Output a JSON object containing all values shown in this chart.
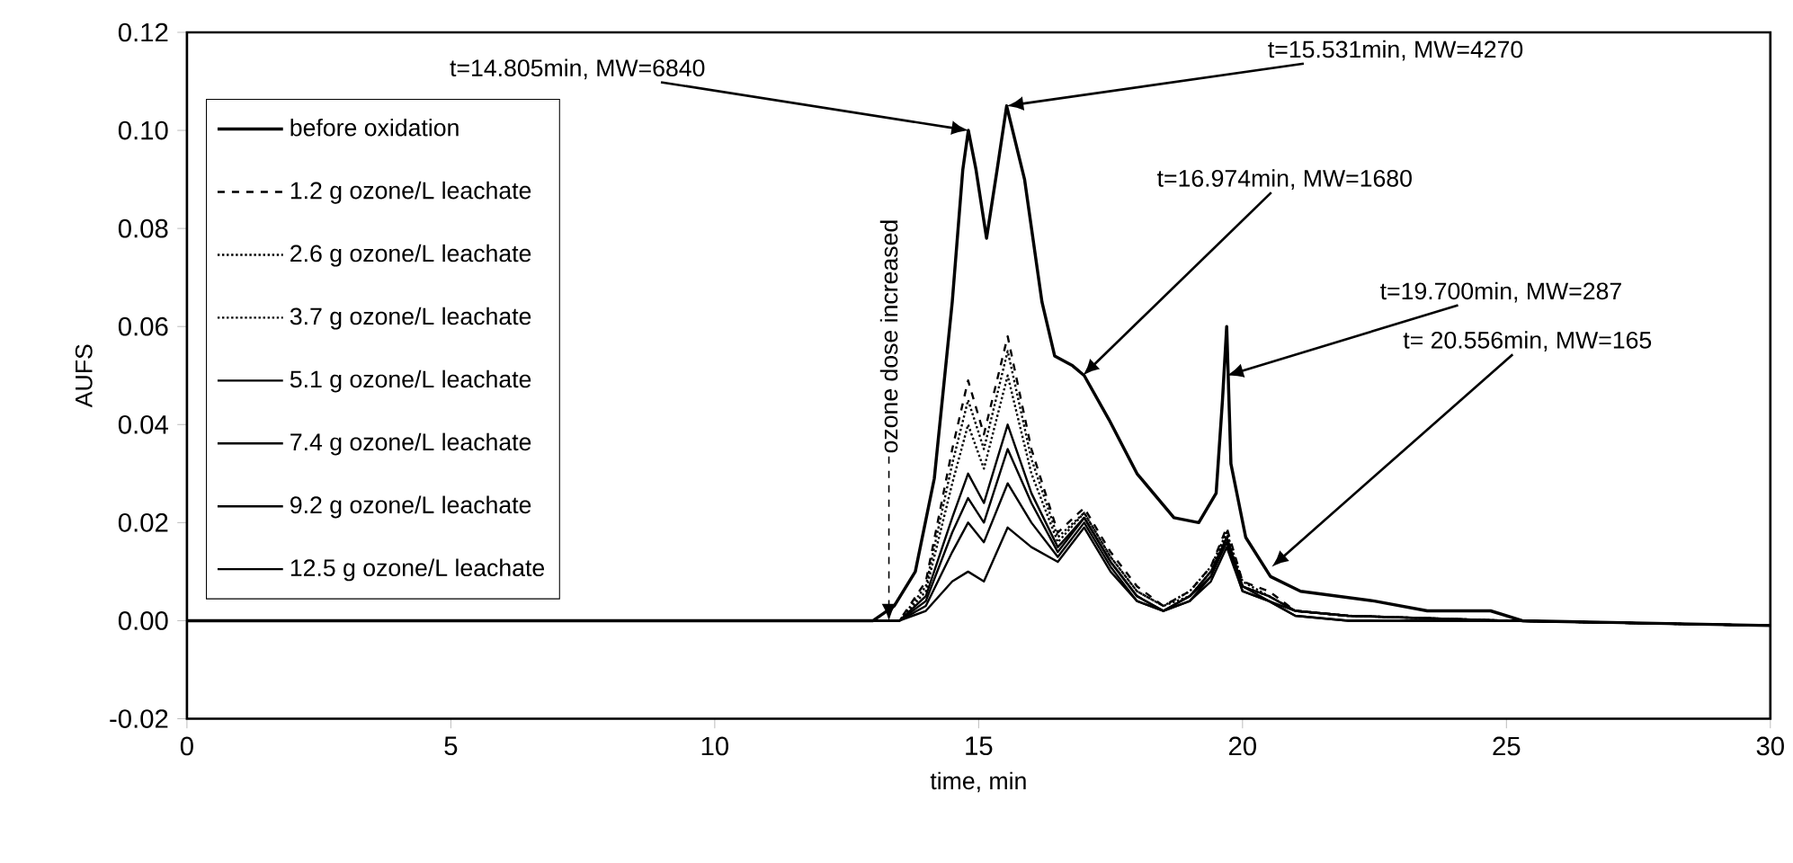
{
  "chart_data": {
    "type": "line",
    "xlabel": "time, min",
    "ylabel": "AUFS",
    "xlim": [
      0,
      30
    ],
    "ylim": [
      -0.02,
      0.12
    ],
    "xticks": [
      0,
      5,
      10,
      15,
      20,
      25,
      30
    ],
    "yticks": [
      {
        "value": -0.02,
        "label": "-0.02"
      },
      {
        "value": 0,
        "label": "0.00"
      },
      {
        "value": 0.02,
        "label": "0.02"
      },
      {
        "value": 0.04,
        "label": "0.04"
      },
      {
        "value": 0.06,
        "label": "0.06"
      },
      {
        "value": 0.08,
        "label": "0.08"
      },
      {
        "value": 0.1,
        "label": "0.10"
      },
      {
        "value": 0.12,
        "label": "0.12"
      }
    ],
    "legend": "top left",
    "series": [
      {
        "name": "before oxidation",
        "color": "#000000",
        "line_style": "solid",
        "x": [
          0,
          13.0,
          13.4,
          13.8,
          14.16,
          14.5,
          14.7,
          14.805,
          14.95,
          15.15,
          15.35,
          15.531,
          15.87,
          16.2,
          16.44,
          16.78,
          17.0,
          17.47,
          18.0,
          18.7,
          19.17,
          19.5,
          19.62,
          19.7,
          19.78,
          20.06,
          20.53,
          21.1,
          22.5,
          23.5,
          24.7,
          25.3,
          30
        ],
        "values": [
          0,
          0,
          0.003,
          0.01,
          0.029,
          0.065,
          0.092,
          0.1,
          0.092,
          0.078,
          0.092,
          0.105,
          0.09,
          0.065,
          0.054,
          0.052,
          0.05,
          0.041,
          0.03,
          0.021,
          0.02,
          0.026,
          0.045,
          0.06,
          0.032,
          0.017,
          0.009,
          0.006,
          0.004,
          0.002,
          0.002,
          0,
          -0.001
        ]
      },
      {
        "name": "1.2 g ozone/L leachate",
        "color": "#000000",
        "line_style": "dashed",
        "x": [
          0,
          13.5,
          14.0,
          14.5,
          14.8,
          15.1,
          15.55,
          16.0,
          16.5,
          17.0,
          17.5,
          18.0,
          18.5,
          19.0,
          19.4,
          19.7,
          20.0,
          20.5,
          21.0,
          22.0,
          25.0,
          30
        ],
        "values": [
          0,
          0,
          0.008,
          0.035,
          0.049,
          0.038,
          0.058,
          0.035,
          0.018,
          0.023,
          0.014,
          0.007,
          0.003,
          0.006,
          0.011,
          0.019,
          0.008,
          0.006,
          0.002,
          0.001,
          0,
          -0.001
        ]
      },
      {
        "name": "2.6 g ozone/L leachate",
        "color": "#000000",
        "line_style": "dotted",
        "x": [
          0,
          13.5,
          14.0,
          14.5,
          14.8,
          15.1,
          15.55,
          16.0,
          16.5,
          17.0,
          17.5,
          18.0,
          18.5,
          19.0,
          19.4,
          19.7,
          20.0,
          20.5,
          21.0,
          22.0,
          25.0,
          30
        ],
        "values": [
          0,
          0,
          0.007,
          0.032,
          0.045,
          0.035,
          0.055,
          0.033,
          0.017,
          0.022,
          0.013,
          0.006,
          0.003,
          0.006,
          0.011,
          0.018,
          0.008,
          0.005,
          0.002,
          0.001,
          0,
          -0.001
        ]
      },
      {
        "name": "3.7 g ozone/L leachate",
        "color": "#000000",
        "line_style": "dotted",
        "x": [
          0,
          13.5,
          14.0,
          14.5,
          14.8,
          15.1,
          15.55,
          16.0,
          16.5,
          17.0,
          17.5,
          18.0,
          18.5,
          19.0,
          19.4,
          19.7,
          20.0,
          20.5,
          21.0,
          22.0,
          25.0,
          30
        ],
        "values": [
          0,
          0,
          0.006,
          0.028,
          0.04,
          0.031,
          0.05,
          0.03,
          0.016,
          0.022,
          0.013,
          0.006,
          0.003,
          0.005,
          0.01,
          0.018,
          0.007,
          0.005,
          0.002,
          0.001,
          0,
          -0.001
        ]
      },
      {
        "name": "5.1 g ozone/L leachate",
        "color": "#000000",
        "line_style": "solid",
        "x": [
          0,
          13.5,
          14.0,
          14.5,
          14.8,
          15.1,
          15.55,
          16.0,
          16.5,
          17.0,
          17.5,
          18.0,
          18.5,
          19.0,
          19.4,
          19.7,
          20.0,
          20.5,
          21.0,
          22.0,
          25.0,
          30
        ],
        "values": [
          0,
          0,
          0.005,
          0.021,
          0.03,
          0.024,
          0.04,
          0.026,
          0.015,
          0.021,
          0.012,
          0.005,
          0.002,
          0.005,
          0.01,
          0.017,
          0.007,
          0.005,
          0.002,
          0.001,
          0,
          -0.001
        ]
      },
      {
        "name": "7.4 g ozone/L leachate",
        "color": "#000000",
        "line_style": "solid",
        "x": [
          0,
          13.5,
          14.0,
          14.5,
          14.8,
          15.1,
          15.55,
          16.0,
          16.5,
          17.0,
          17.5,
          18.0,
          18.5,
          19.0,
          19.4,
          19.7,
          20.0,
          20.5,
          21.0,
          22.0,
          25.0,
          30
        ],
        "values": [
          0,
          0,
          0.004,
          0.018,
          0.025,
          0.02,
          0.035,
          0.024,
          0.014,
          0.021,
          0.012,
          0.005,
          0.002,
          0.005,
          0.009,
          0.017,
          0.007,
          0.004,
          0.002,
          0.001,
          0,
          -0.001
        ]
      },
      {
        "name": "9.2 g ozone/L leachate",
        "color": "#000000",
        "line_style": "solid",
        "x": [
          0,
          13.5,
          14.0,
          14.5,
          14.8,
          15.1,
          15.55,
          16.0,
          16.5,
          17.0,
          17.5,
          18.0,
          18.5,
          19.0,
          19.4,
          19.7,
          20.0,
          20.5,
          21.0,
          22.0,
          25.0,
          30
        ],
        "values": [
          0,
          0,
          0.003,
          0.014,
          0.02,
          0.016,
          0.028,
          0.02,
          0.013,
          0.02,
          0.011,
          0.004,
          0.002,
          0.004,
          0.009,
          0.016,
          0.006,
          0.004,
          0.001,
          0,
          0,
          -0.001
        ]
      },
      {
        "name": "12.5 g ozone/L leachate",
        "color": "#000000",
        "line_style": "solid",
        "x": [
          0,
          13.5,
          14.0,
          14.5,
          14.8,
          15.1,
          15.55,
          16.0,
          16.5,
          17.0,
          17.5,
          18.0,
          18.5,
          19.0,
          19.4,
          19.7,
          20.0,
          20.5,
          21.0,
          22.0,
          25.0,
          30
        ],
        "values": [
          0,
          0,
          0.002,
          0.008,
          0.01,
          0.008,
          0.019,
          0.015,
          0.012,
          0.019,
          0.01,
          0.004,
          0.002,
          0.004,
          0.008,
          0.015,
          0.006,
          0.004,
          0.001,
          0,
          0,
          -0.001
        ]
      }
    ],
    "annotations": [
      {
        "text": "t=14.805min, MW=6840",
        "x": 14.805,
        "y": 0.1
      },
      {
        "text": "t=15.531min, MW=4270",
        "x": 15.531,
        "y": 0.105
      },
      {
        "text": "t=16.974min, MW=1680",
        "x": 16.974,
        "y": 0.05
      },
      {
        "text": "t=19.700min, MW=287",
        "x": 19.7,
        "y": 0.05
      },
      {
        "text": "t= 20.556min, MW=165",
        "x": 20.556,
        "y": 0.011
      },
      {
        "text": "ozone dose increased",
        "x": 13.3,
        "y": 0
      }
    ]
  }
}
